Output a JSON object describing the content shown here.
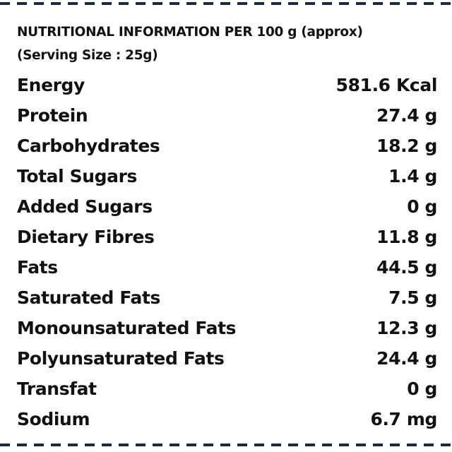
{
  "header": {
    "title": "NUTRITIONAL INFORMATION PER 100 g (approx)",
    "subtitle": "(Serving Size : 25g)"
  },
  "nutrients": [
    {
      "label": "Energy",
      "value": "581.6 Kcal"
    },
    {
      "label": "Protein",
      "value": "27.4 g"
    },
    {
      "label": "Carbohydrates",
      "value": "18.2 g"
    },
    {
      "label": "Total Sugars",
      "value": "1.4 g"
    },
    {
      "label": "Added Sugars",
      "value": "0 g"
    },
    {
      "label": "Dietary Fibres",
      "value": "11.8 g"
    },
    {
      "label": "Fats",
      "value": "44.5 g"
    },
    {
      "label": "Saturated Fats",
      "value": "7.5 g"
    },
    {
      "label": "Monounsaturated Fats",
      "value": "12.3 g"
    },
    {
      "label": "Polyunsaturated Fats",
      "value": "24.4 g"
    },
    {
      "label": "Transfat",
      "value": "0 g"
    },
    {
      "label": "Sodium",
      "value": "6.7 mg"
    }
  ],
  "colors": {
    "text": "#111111",
    "border_dash": "#1c2a40",
    "background": "#ffffff"
  }
}
